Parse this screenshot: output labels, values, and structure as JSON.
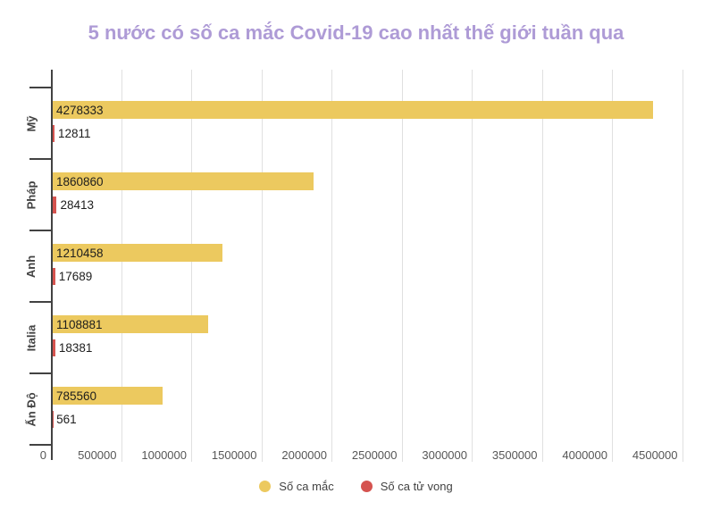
{
  "title": "5 nước có số ca mắc Covid-19 cao nhất thế giới tuần qua",
  "colors": {
    "title": "#AE9BD6",
    "cases": "#ECC95F",
    "deaths": "#D5534F",
    "axis": "#424242",
    "grid": "#E0E0E0",
    "value_label": "#1D1D1D",
    "tick_label": "#565656"
  },
  "chart_data": {
    "type": "bar",
    "orientation": "horizontal",
    "title": "5 nước có số ca mắc Covid-19 cao nhất thế giới tuần qua",
    "categories": [
      "Mỹ",
      "Pháp",
      "Anh",
      "Italia",
      "Ấn Độ"
    ],
    "series": [
      {
        "name": "Số ca mắc",
        "color": "#ECC95F",
        "values": [
          4278333,
          1860860,
          1210458,
          1108881,
          785560
        ]
      },
      {
        "name": "Số ca tử vong",
        "color": "#D5534F",
        "values": [
          12811,
          28413,
          17689,
          18381,
          561
        ]
      }
    ],
    "x_ticks": [
      0,
      500000,
      1000000,
      1500000,
      2000000,
      2500000,
      3000000,
      3500000,
      4000000,
      4500000
    ],
    "xlim": [
      0,
      4500000
    ],
    "xlabel": "",
    "ylabel": "",
    "grid": true,
    "legend_position": "bottom"
  },
  "legend": {
    "items": [
      {
        "label": "Số ca mắc",
        "color": "#ECC95F"
      },
      {
        "label": "Số ca tử vong",
        "color": "#D5534F"
      }
    ]
  }
}
